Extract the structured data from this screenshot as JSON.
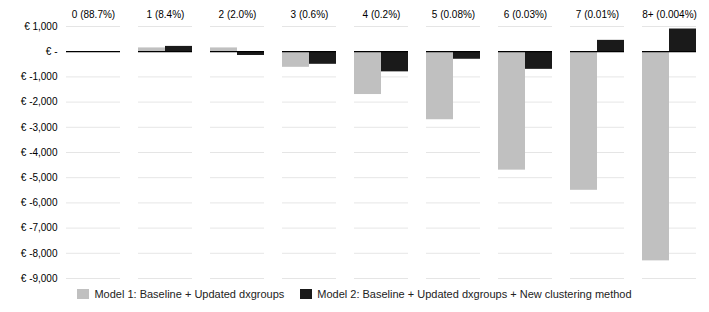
{
  "chart_data": {
    "type": "bar",
    "categories": [
      "0 (88.7%)",
      "1 (8.4%)",
      "2 (2.0%)",
      "3 (0.6%)",
      "4 (0.2%)",
      "5 (0.08%)",
      "6 (0.03%)",
      "7 (0.01%)",
      "8+ (0.004%)"
    ],
    "series": [
      {
        "name": "Model 1: Baseline + Updated dxgroups",
        "color": "#c0c0c0",
        "values": [
          0,
          150,
          150,
          -620,
          -1700,
          -2700,
          -4700,
          -5500,
          -8300
        ]
      },
      {
        "name": "Model 2: Baseline + Updated dxgroups + New clustering method",
        "color": "#1a1a1a",
        "values": [
          0,
          210,
          -150,
          -500,
          -800,
          -300,
          -700,
          450,
          900
        ]
      }
    ],
    "ylim": [
      -9000,
      1000
    ],
    "yticks": [
      {
        "value": 1000,
        "label": "€ 1,000"
      },
      {
        "value": 0,
        "label": "€ -"
      },
      {
        "value": -1000,
        "label": "€ -1,000"
      },
      {
        "value": -2000,
        "label": "€ -2,000"
      },
      {
        "value": -3000,
        "label": "€ -3,000"
      },
      {
        "value": -4000,
        "label": "€ -4,000"
      },
      {
        "value": -5000,
        "label": "€ -5,000"
      },
      {
        "value": -6000,
        "label": "€ -6,000"
      },
      {
        "value": -7000,
        "label": "€ -7,000"
      },
      {
        "value": -8000,
        "label": "€ -8,000"
      },
      {
        "value": -9000,
        "label": "€ -9,000"
      }
    ],
    "grid": true,
    "legend": "bottom"
  }
}
